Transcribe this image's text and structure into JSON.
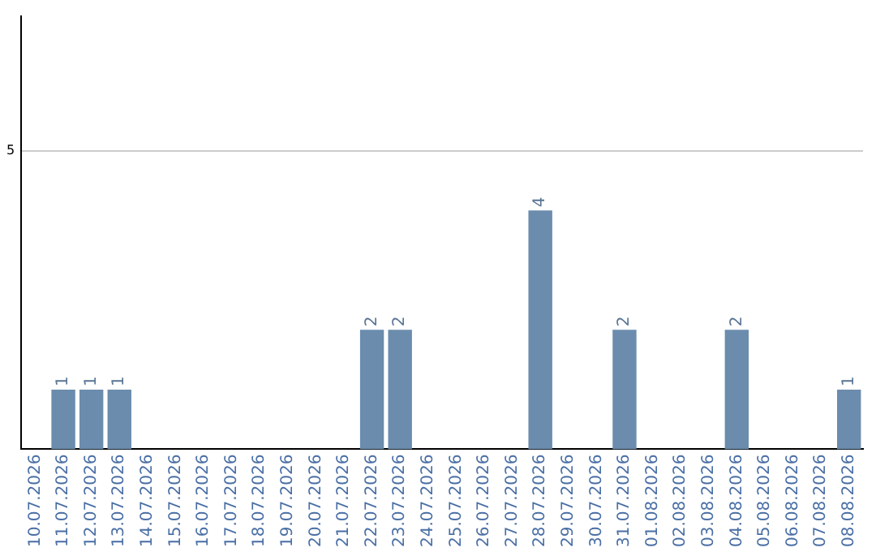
{
  "chart_data": {
    "type": "bar",
    "categories": [
      "10.07.2026",
      "11.07.2026",
      "12.07.2026",
      "13.07.2026",
      "14.07.2026",
      "15.07.2026",
      "16.07.2026",
      "17.07.2026",
      "18.07.2026",
      "19.07.2026",
      "20.07.2026",
      "21.07.2026",
      "22.07.2026",
      "23.07.2026",
      "24.07.2026",
      "25.07.2026",
      "26.07.2026",
      "27.07.2026",
      "28.07.2026",
      "29.07.2026",
      "30.07.2026",
      "31.07.2026",
      "01.08.2026",
      "02.08.2026",
      "03.08.2026",
      "04.08.2026",
      "05.08.2026",
      "06.08.2026",
      "07.08.2026",
      "08.08.2026"
    ],
    "values": [
      0,
      1,
      1,
      1,
      0,
      0,
      0,
      0,
      0,
      0,
      0,
      0,
      2,
      2,
      0,
      0,
      0,
      0,
      4,
      0,
      0,
      2,
      0,
      0,
      0,
      2,
      0,
      0,
      0,
      1
    ],
    "value_labels": [
      null,
      "1",
      "1",
      "1",
      null,
      null,
      null,
      null,
      null,
      null,
      null,
      null,
      "2",
      "2",
      null,
      null,
      null,
      null,
      "4",
      null,
      null,
      "2",
      null,
      null,
      null,
      "2",
      null,
      null,
      null,
      "1"
    ],
    "color": "#6b8cad",
    "ylim": [
      0,
      7.25
    ],
    "yticks": [
      5
    ],
    "grid": "y",
    "legend": false
  }
}
